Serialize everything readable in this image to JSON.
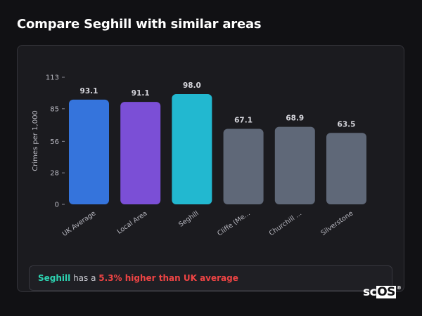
{
  "page": {
    "title": "Compare Seghill with similar areas"
  },
  "summary": {
    "area": "Seghill",
    "text_mid": " has a ",
    "difference": "5.3% higher than UK average"
  },
  "logo": {
    "text_a": "sc",
    "text_b": "OS",
    "mark": "®"
  },
  "chart_data": {
    "type": "bar",
    "title": "",
    "xlabel": "",
    "ylabel": "Crimes per 1,000",
    "categories": [
      "UK Average",
      "Local Area",
      "Seghill",
      "Cliffe (Me...",
      "Churchill ...",
      "Silverstone"
    ],
    "values": [
      93.1,
      91.1,
      98.0,
      67.1,
      68.9,
      63.5
    ],
    "value_labels": [
      "93.1",
      "91.1",
      "98.0",
      "67.1",
      "68.9",
      "63.5"
    ],
    "colors": [
      "#3574dc",
      "#7b4fd6",
      "#22b8d0",
      "#5f6878",
      "#5f6878",
      "#5f6878"
    ],
    "yticks": [
      0,
      28,
      56,
      85,
      113
    ],
    "ylim": [
      0,
      113
    ],
    "grid": false,
    "legend": "none"
  }
}
